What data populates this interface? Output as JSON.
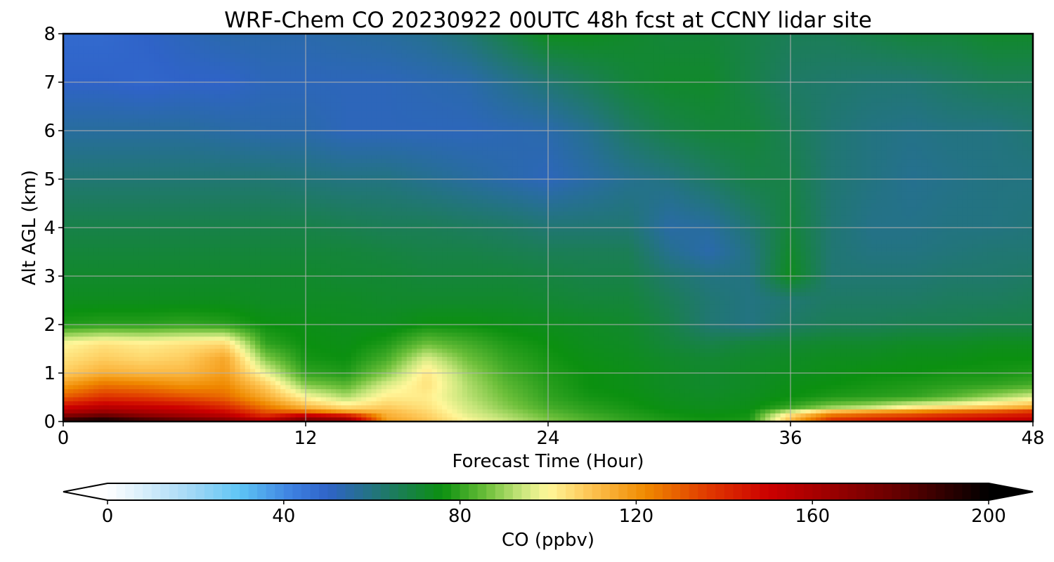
{
  "chart_data": {
    "type": "heatmap",
    "title": "WRF-Chem CO  20230922 00UTC 48h fcst at CCNY lidar site",
    "xlabel": "Forecast Time (Hour)",
    "ylabel": "Alt AGL (km)",
    "xlim": [
      0,
      48
    ],
    "ylim": [
      0,
      8
    ],
    "x_ticks": [
      0,
      12,
      24,
      36,
      48
    ],
    "y_ticks": [
      0,
      1,
      2,
      3,
      4,
      5,
      6,
      7,
      8
    ],
    "grid": true,
    "colorbar": {
      "label": "CO  (ppbv)",
      "range": [
        0,
        200
      ],
      "ticks": [
        0,
        40,
        80,
        120,
        160,
        200
      ],
      "extend": "both",
      "orientation": "horizontal",
      "placement": "bottom",
      "stops": [
        {
          "value": 0,
          "color": "#ffffff"
        },
        {
          "value": 20,
          "color": "#9dd6f5"
        },
        {
          "value": 30,
          "color": "#5ec5f5"
        },
        {
          "value": 42,
          "color": "#3d7fe0"
        },
        {
          "value": 50,
          "color": "#2f63c8"
        },
        {
          "value": 64,
          "color": "#1e7a64"
        },
        {
          "value": 76,
          "color": "#0b9010"
        },
        {
          "value": 86,
          "color": "#6cbf3a"
        },
        {
          "value": 94,
          "color": "#c8e67c"
        },
        {
          "value": 100,
          "color": "#fff79a"
        },
        {
          "value": 110,
          "color": "#fdc250"
        },
        {
          "value": 122,
          "color": "#f08a00"
        },
        {
          "value": 136,
          "color": "#e03a00"
        },
        {
          "value": 150,
          "color": "#cc0000"
        },
        {
          "value": 178,
          "color": "#6a0000"
        },
        {
          "value": 200,
          "color": "#000000"
        }
      ]
    },
    "x": [
      0,
      2,
      4,
      6,
      8,
      10,
      12,
      14,
      16,
      18,
      20,
      22,
      24,
      26,
      28,
      30,
      32,
      34,
      36,
      38,
      40,
      42,
      44,
      46,
      48
    ],
    "y": [
      0,
      0.1,
      0.2,
      0.3,
      0.5,
      0.75,
      1,
      1.3,
      1.6,
      2,
      2.5,
      3,
      3.5,
      4,
      5,
      6,
      7,
      8
    ],
    "z": [
      [
        195,
        200,
        192,
        185,
        175,
        160,
        178,
        170,
        118,
        110,
        100,
        94,
        88,
        83,
        80,
        78,
        77,
        78,
        112,
        140,
        145,
        148,
        150,
        152,
        156
      ],
      [
        175,
        182,
        172,
        165,
        158,
        142,
        160,
        152,
        115,
        108,
        98,
        92,
        86,
        82,
        79,
        77,
        76,
        77,
        108,
        130,
        135,
        138,
        142,
        145,
        148
      ],
      [
        158,
        165,
        160,
        155,
        148,
        132,
        128,
        118,
        112,
        106,
        96,
        90,
        84,
        80,
        78,
        76,
        75,
        76,
        95,
        112,
        118,
        122,
        128,
        132,
        138
      ],
      [
        148,
        155,
        152,
        148,
        140,
        125,
        112,
        104,
        108,
        104,
        95,
        88,
        82,
        79,
        77,
        75,
        74,
        75,
        80,
        88,
        92,
        100,
        104,
        108,
        114
      ],
      [
        130,
        138,
        136,
        132,
        128,
        115,
        100,
        92,
        102,
        102,
        93,
        86,
        80,
        77,
        76,
        74,
        73,
        74,
        76,
        78,
        79,
        80,
        84,
        90,
        96
      ],
      [
        118,
        126,
        124,
        120,
        122,
        108,
        88,
        84,
        96,
        104,
        92,
        84,
        79,
        76,
        75,
        73,
        72,
        73,
        75,
        76,
        77,
        78,
        79,
        80,
        82
      ],
      [
        108,
        114,
        112,
        112,
        118,
        98,
        80,
        78,
        88,
        103,
        90,
        82,
        78,
        76,
        75,
        73,
        72,
        73,
        74,
        75,
        76,
        76,
        77,
        77,
        78
      ],
      [
        104,
        108,
        106,
        108,
        116,
        88,
        77,
        76,
        82,
        96,
        86,
        80,
        77,
        75,
        74,
        72,
        71,
        72,
        73,
        74,
        74,
        75,
        75,
        76,
        76
      ],
      [
        100,
        104,
        102,
        104,
        106,
        80,
        76,
        75,
        78,
        86,
        82,
        78,
        76,
        74,
        73,
        70,
        68,
        70,
        71,
        72,
        72,
        73,
        73,
        74,
        74
      ],
      [
        78,
        79,
        79,
        80,
        79,
        76,
        75,
        74,
        74,
        76,
        76,
        75,
        74,
        73,
        72,
        68,
        62,
        60,
        64,
        66,
        66,
        67,
        67,
        68,
        68
      ],
      [
        74,
        74,
        74,
        74,
        74,
        73,
        73,
        73,
        72,
        72,
        72,
        72,
        71,
        70,
        70,
        66,
        62,
        60,
        62,
        64,
        64,
        64,
        65,
        65,
        66
      ],
      [
        72,
        72,
        72,
        72,
        72,
        72,
        72,
        71,
        71,
        70,
        70,
        70,
        69,
        68,
        68,
        63,
        60,
        60,
        74,
        62,
        62,
        62,
        63,
        63,
        64
      ],
      [
        70,
        70,
        70,
        70,
        70,
        70,
        70,
        70,
        69,
        68,
        68,
        67,
        66,
        66,
        66,
        58,
        54,
        60,
        72,
        62,
        60,
        60,
        61,
        62,
        62
      ],
      [
        68,
        68,
        68,
        68,
        68,
        68,
        68,
        67,
        66,
        66,
        65,
        64,
        62,
        62,
        62,
        55,
        56,
        62,
        70,
        62,
        59,
        59,
        60,
        60,
        61
      ],
      [
        62,
        62,
        62,
        62,
        62,
        62,
        61,
        60,
        60,
        58,
        56,
        54,
        52,
        55,
        58,
        60,
        64,
        68,
        68,
        62,
        60,
        58,
        59,
        60,
        60
      ],
      [
        56,
        56,
        56,
        56,
        55,
        54,
        54,
        52,
        52,
        52,
        52,
        53,
        54,
        58,
        64,
        68,
        70,
        70,
        66,
        62,
        60,
        59,
        60,
        60,
        62
      ],
      [
        50,
        50,
        49,
        50,
        50,
        52,
        52,
        52,
        52,
        53,
        54,
        58,
        62,
        66,
        70,
        72,
        72,
        68,
        64,
        63,
        62,
        62,
        64,
        66,
        66
      ],
      [
        48,
        48,
        50,
        52,
        54,
        54,
        54,
        55,
        56,
        58,
        62,
        68,
        74,
        74,
        72,
        70,
        70,
        68,
        66,
        66,
        68,
        70,
        70,
        72,
        72
      ]
    ]
  }
}
